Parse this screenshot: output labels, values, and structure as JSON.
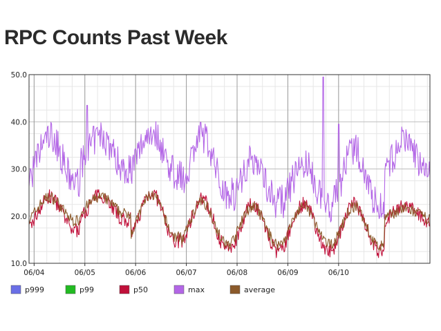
{
  "chart_data": {
    "type": "line",
    "title": "RPC Counts Past Week",
    "xlabel": "",
    "ylabel": "",
    "ylim": [
      10,
      50
    ],
    "yticks": [
      "10.0",
      "20.0",
      "30.0",
      "40.0",
      "50.0"
    ],
    "ytick_values": [
      10,
      20,
      30,
      40,
      50
    ],
    "x_range_days": [
      0,
      7.9
    ],
    "xticks": [
      "06/04",
      "06/05",
      "06/06",
      "06/07",
      "06/08",
      "06/09",
      "06/10"
    ],
    "xtick_positions_days": [
      0.1,
      1.1,
      2.1,
      3.1,
      4.1,
      5.1,
      6.1
    ],
    "grid": true,
    "legend_position": "bottom",
    "series": [
      {
        "name": "p999",
        "color": "#6a6fe6"
      },
      {
        "name": "p99",
        "color": "#22bb22"
      },
      {
        "name": "p50",
        "color": "#c0103a"
      },
      {
        "name": "max",
        "color": "#b366e6"
      },
      {
        "name": "average",
        "color": "#8b5a2b"
      }
    ],
    "series_profile": {
      "samples_per_day": 72,
      "max": {
        "daily_peak": [
          37,
          37,
          38,
          37,
          32,
          31,
          34,
          36
        ],
        "daily_trough": [
          27,
          30,
          29,
          25,
          23,
          22,
          22,
          28
        ],
        "spikes": [
          {
            "day": 1.15,
            "value": 43.5
          },
          {
            "day": 5.8,
            "value": 49.5
          },
          {
            "day": 6.1,
            "value": 39.5
          }
        ]
      },
      "p50": {
        "daily_peak": [
          24,
          24.5,
          25,
          23.5,
          22.5,
          22.5,
          22.5,
          22
        ],
        "daily_trough": [
          17,
          19,
          14.5,
          13,
          12.5,
          12.5,
          12.5,
          19
        ]
      },
      "average": {
        "daily_peak": [
          24,
          24,
          24.5,
          23,
          22,
          22,
          22,
          21.5
        ],
        "daily_trough": [
          19,
          20.5,
          15.5,
          14,
          14,
          14,
          13.5,
          19.5
        ]
      }
    }
  }
}
